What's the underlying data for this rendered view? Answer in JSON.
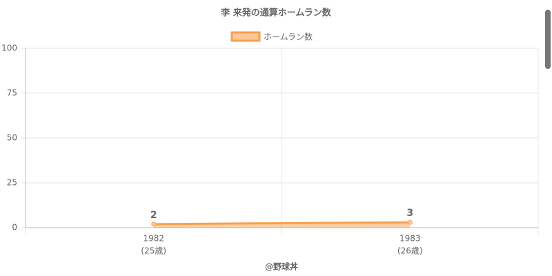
{
  "chart_data": {
    "type": "line",
    "title": "李 来発の通算ホームラン数",
    "categories": [
      "1982",
      "1983"
    ],
    "category_sublabels": [
      "(25歳)",
      "(26歳)"
    ],
    "series": [
      {
        "name": "ホームラン数",
        "color": "#f7a04b",
        "values": [
          2,
          3
        ]
      }
    ],
    "x_label": "@野球丼",
    "ylim": [
      0,
      100
    ],
    "yticks": [
      0,
      25,
      50,
      75,
      100
    ],
    "grid": true,
    "legend": "top",
    "fill": true
  }
}
